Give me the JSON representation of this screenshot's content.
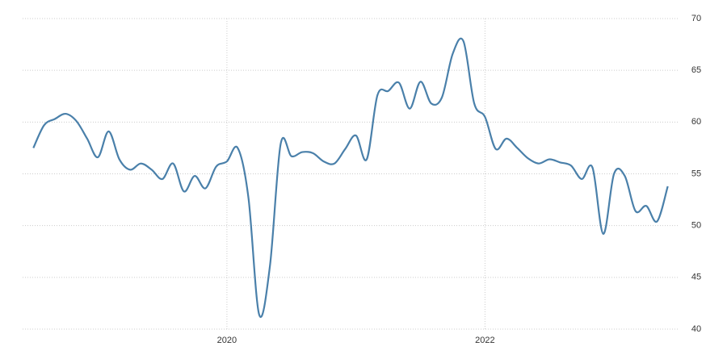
{
  "chart_data": {
    "type": "line",
    "x": [
      "2018-07",
      "2018-08",
      "2018-09",
      "2018-10",
      "2018-11",
      "2018-12",
      "2019-01",
      "2019-02",
      "2019-03",
      "2019-04",
      "2019-05",
      "2019-06",
      "2019-07",
      "2019-08",
      "2019-09",
      "2019-10",
      "2019-11",
      "2019-12",
      "2020-01",
      "2020-02",
      "2020-03",
      "2020-04",
      "2020-05",
      "2020-06",
      "2020-07",
      "2020-08",
      "2020-09",
      "2020-10",
      "2020-11",
      "2020-12",
      "2021-01",
      "2021-02",
      "2021-03",
      "2021-04",
      "2021-05",
      "2021-06",
      "2021-07",
      "2021-08",
      "2021-09",
      "2021-10",
      "2021-11",
      "2021-12",
      "2022-01",
      "2022-02",
      "2022-03",
      "2022-04",
      "2022-05",
      "2022-06",
      "2022-07",
      "2022-08",
      "2022-09",
      "2022-10",
      "2022-11",
      "2022-12",
      "2023-01",
      "2023-02",
      "2023-03",
      "2023-04",
      "2023-05",
      "2023-06"
    ],
    "series": [
      {
        "color": "#4a80aa",
        "values": [
          57.5,
          59.7,
          60.3,
          60.8,
          60.1,
          58.4,
          56.6,
          59.1,
          56.4,
          55.4,
          56.0,
          55.4,
          54.5,
          56.0,
          53.3,
          54.8,
          53.6,
          55.7,
          56.2,
          57.5,
          52.7,
          41.4,
          46.1,
          57.9,
          56.7,
          57.1,
          57.0,
          56.2,
          56.0,
          57.4,
          58.7,
          56.4,
          62.6,
          63.0,
          63.8,
          61.3,
          63.9,
          61.8,
          62.4,
          66.6,
          67.8,
          61.8,
          60.5,
          57.4,
          58.4,
          57.5,
          56.5,
          56.0,
          56.4,
          56.1,
          55.8,
          54.5,
          55.6,
          49.2,
          55.0,
          54.8,
          51.4,
          51.9,
          50.4,
          53.8
        ]
      }
    ],
    "xlim": [
      "2018-06",
      "2023-07"
    ],
    "xticks": [
      {
        "value": "2020-01",
        "label": "2020"
      },
      {
        "value": "2022-01",
        "label": "2022"
      }
    ],
    "ylim": [
      40,
      70
    ],
    "yticks": [
      40,
      45,
      50,
      55,
      60,
      65,
      70
    ],
    "grid": true
  }
}
